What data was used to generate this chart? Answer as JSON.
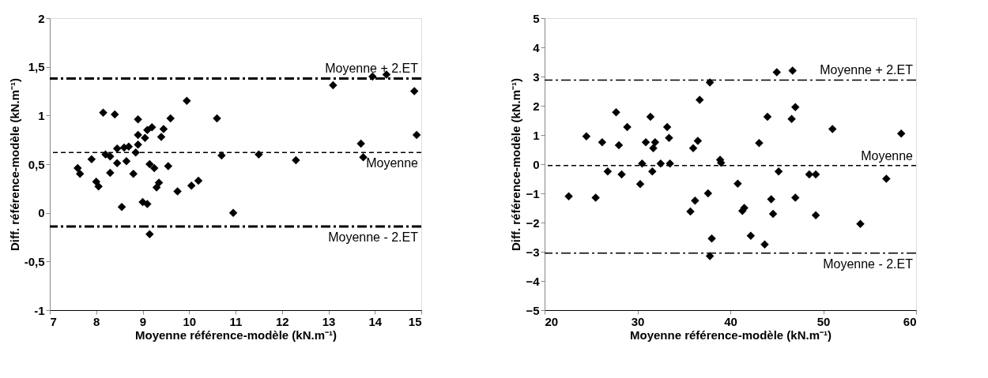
{
  "chart_data": [
    {
      "type": "scatter",
      "marker": "diamond",
      "grid": false,
      "xlabel": "Moyenne référence-modèle (kN.m⁻¹)",
      "ylabel": "Diff. référence-modèle (kN.m⁻¹)",
      "xlim": [
        7,
        15
      ],
      "xticks": [
        7,
        8,
        9,
        10,
        11,
        12,
        13,
        14,
        15
      ],
      "ylim": [
        -1,
        2
      ],
      "yticks": [
        {
          "value": -1,
          "label": "-1"
        },
        {
          "value": -0.5,
          "label": "-0,5"
        },
        {
          "value": 0,
          "label": "0"
        },
        {
          "value": 0.5,
          "label": "0,5"
        },
        {
          "value": 1,
          "label": "1"
        },
        {
          "value": 1.5,
          "label": "1,5"
        },
        {
          "value": 2,
          "label": "2"
        }
      ],
      "series": [
        {
          "color": "#000000",
          "x": [
            7.6,
            7.65,
            7.9,
            8.0,
            8.05,
            8.15,
            8.2,
            8.3,
            8.3,
            8.4,
            8.45,
            8.45,
            8.55,
            8.6,
            8.65,
            8.7,
            8.8,
            8.85,
            8.9,
            8.9,
            8.9,
            9.0,
            9.05,
            9.1,
            9.1,
            9.15,
            9.15,
            9.2,
            9.25,
            9.3,
            9.35,
            9.4,
            9.45,
            9.55,
            9.6,
            9.75,
            9.95,
            10.05,
            10.2,
            10.6,
            10.7,
            10.95,
            11.5,
            12.3,
            13.1,
            13.7,
            13.75,
            13.95,
            14.25,
            14.85,
            14.9
          ],
          "values": [
            0.46,
            0.4,
            0.55,
            0.32,
            0.27,
            1.03,
            0.6,
            0.41,
            0.58,
            1.01,
            0.66,
            0.51,
            0.06,
            0.67,
            0.53,
            0.68,
            0.4,
            0.62,
            0.96,
            0.7,
            0.8,
            0.11,
            0.77,
            0.09,
            0.85,
            -0.22,
            0.5,
            0.88,
            0.46,
            0.26,
            0.31,
            0.78,
            0.86,
            0.48,
            0.97,
            0.22,
            1.15,
            0.28,
            0.33,
            0.97,
            0.59,
            0.0,
            0.6,
            0.54,
            1.31,
            0.71,
            0.57,
            1.4,
            1.42,
            1.25,
            0.8
          ]
        }
      ],
      "ref_lines": [
        {
          "axis": "y",
          "value": 1.38,
          "label": "Moyenne + 2.ET",
          "line_style": "dashdot",
          "color": "#000000"
        },
        {
          "axis": "y",
          "value": 0.62,
          "label": "Moyenne",
          "line_style": "dashed",
          "color": "#000000"
        },
        {
          "axis": "y",
          "value": -0.14,
          "label": "Moyenne - 2.ET",
          "line_style": "dashdot",
          "color": "#000000"
        }
      ]
    },
    {
      "type": "scatter",
      "marker": "diamond",
      "grid": false,
      "xlabel": "Moyenne référence-modèle (kN.m⁻¹)",
      "ylabel": "Diff. référence-modèle (kN.m⁻¹)",
      "xlim": [
        20,
        60
      ],
      "xticks": [
        20,
        30,
        40,
        50,
        60
      ],
      "ylim": [
        -5,
        5
      ],
      "yticks": [
        -5,
        -4,
        -3,
        -2,
        -1,
        0,
        1,
        2,
        3,
        4,
        5
      ],
      "series": [
        {
          "color": "#000000",
          "x": [
            22.6,
            24.5,
            25.5,
            26.2,
            26.8,
            27.7,
            28.0,
            28.3,
            28.9,
            30.3,
            30.5,
            30.9,
            31.4,
            31.6,
            31.7,
            31.9,
            32.5,
            33.2,
            33.4,
            33.5,
            35.7,
            36.0,
            36.2,
            36.7,
            36.5,
            37.6,
            37.8,
            38.0,
            37.8,
            38.9,
            39.0,
            40.8,
            41.3,
            41.5,
            42.2,
            43.1,
            43.7,
            44.0,
            44.4,
            44.6,
            45.0,
            45.2,
            46.6,
            46.7,
            47.0,
            47.0,
            48.5,
            49.2,
            49.2,
            51.0,
            54.0,
            56.8,
            58.4
          ],
          "values": [
            -1.1,
            0.95,
            -1.15,
            0.75,
            -0.25,
            1.78,
            0.65,
            -0.35,
            1.27,
            -0.68,
            0.02,
            0.75,
            1.62,
            -0.25,
            0.55,
            0.75,
            0.02,
            1.27,
            0.9,
            0.02,
            -1.62,
            0.55,
            -1.25,
            2.2,
            0.8,
            -1.0,
            2.8,
            -2.55,
            -3.15,
            0.15,
            0.05,
            -0.67,
            -1.6,
            -1.5,
            -2.45,
            0.72,
            -2.75,
            1.62,
            -1.2,
            -1.7,
            3.15,
            -0.25,
            1.55,
            3.2,
            -1.15,
            1.95,
            -0.35,
            -0.35,
            -1.75,
            1.2,
            -2.05,
            -0.5,
            1.05
          ]
        }
      ],
      "ref_lines": [
        {
          "axis": "y",
          "value": 2.88,
          "label": "Moyenne + 2.ET",
          "line_style": "dashdot",
          "color": "#000000"
        },
        {
          "axis": "y",
          "value": -0.05,
          "label": "Moyenne",
          "line_style": "dashed",
          "color": "#000000"
        },
        {
          "axis": "y",
          "value": -3.05,
          "label": "Moyenne - 2.ET",
          "line_style": "dashdot",
          "color": "#000000"
        }
      ]
    }
  ]
}
